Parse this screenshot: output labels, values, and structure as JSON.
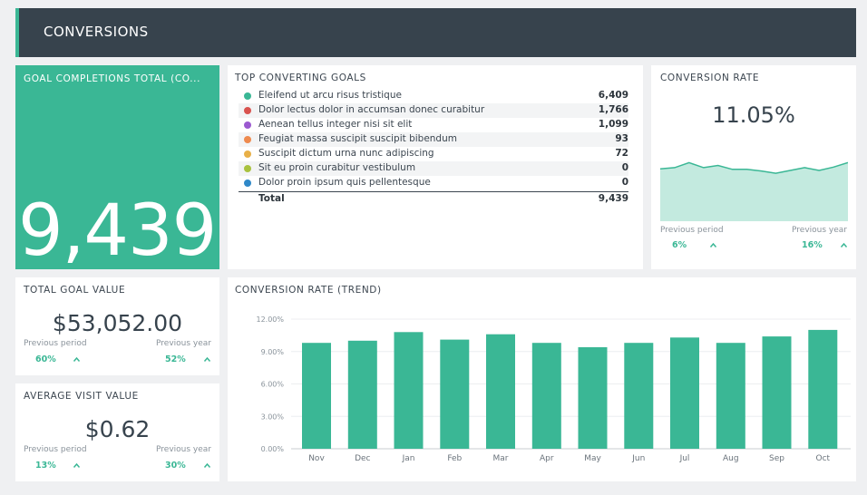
{
  "header": {
    "title": "CONVERSIONS"
  },
  "goal_completions": {
    "title": "GOAL COMPLETIONS TOTAL (CO...",
    "value": "9,439"
  },
  "top_goals": {
    "title": "TOP CONVERTING GOALS",
    "rows": [
      {
        "label": "Eleifend ut arcu risus tristique",
        "value": "6,409",
        "color": "#3ab795"
      },
      {
        "label": "Dolor lectus dolor in accumsan donec curabitur",
        "value": "1,766",
        "color": "#d9534f"
      },
      {
        "label": "Aenean tellus integer nisi sit elit",
        "value": "1,099",
        "color": "#9b59d0"
      },
      {
        "label": "Feugiat massa suscipit suscipit bibendum",
        "value": "93",
        "color": "#ee8a4e"
      },
      {
        "label": "Suscipit dictum urna nunc adipiscing",
        "value": "72",
        "color": "#e8b048"
      },
      {
        "label": "Sit eu proin curabitur vestibulum",
        "value": "0",
        "color": "#a9c23f"
      },
      {
        "label": "Dolor proin ipsum quis pellentesque",
        "value": "0",
        "color": "#2f88c8"
      }
    ],
    "total_label": "Total",
    "total_value": "9,439"
  },
  "conversion_rate": {
    "title": "CONVERSION RATE",
    "value": "11.05%",
    "previous_period_label": "Previous period",
    "previous_period_pct": "6%",
    "previous_year_label": "Previous year",
    "previous_year_pct": "16%",
    "sparkline": [
      9.4,
      9.6,
      10.5,
      9.6,
      10.0,
      9.3,
      9.3,
      9.0,
      8.6,
      9.1,
      9.6,
      9.1,
      9.7,
      10.5
    ]
  },
  "total_goal_value": {
    "title": "TOTAL GOAL VALUE",
    "value": "$53,052.00",
    "previous_period_label": "Previous period",
    "previous_period_pct": "60%",
    "previous_year_label": "Previous year",
    "previous_year_pct": "52%"
  },
  "average_visit_value": {
    "title": "AVERAGE VISIT VALUE",
    "value": "$0.62",
    "previous_period_label": "Previous period",
    "previous_period_pct": "13%",
    "previous_year_label": "Previous year",
    "previous_year_pct": "30%"
  },
  "chart_data": {
    "type": "bar",
    "title": "CONVERSION RATE (TREND)",
    "categories": [
      "Nov",
      "Dec",
      "Jan",
      "Feb",
      "Mar",
      "Apr",
      "May",
      "Jun",
      "Jul",
      "Aug",
      "Sep",
      "Oct"
    ],
    "values": [
      9.8,
      10.0,
      10.8,
      10.1,
      10.6,
      9.8,
      9.4,
      9.8,
      10.3,
      9.8,
      10.4,
      11.0
    ],
    "yticks": [
      "0.00%",
      "3.00%",
      "6.00%",
      "9.00%",
      "12.00%"
    ],
    "ylim": [
      0,
      12
    ],
    "grid": true,
    "color": "#3ab795"
  },
  "colors": {
    "accent": "#3ab795",
    "header": "#37434d"
  }
}
